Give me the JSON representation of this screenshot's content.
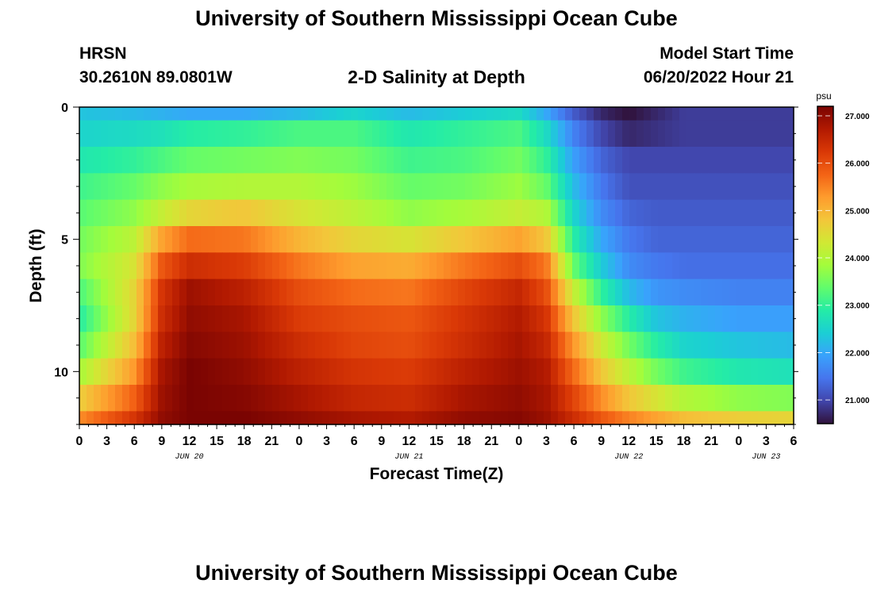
{
  "header": {
    "title": "University of Southern Mississippi Ocean Cube",
    "station": "HRSN",
    "coordinates": "30.2610N  89.0801W",
    "product": "2-D Salinity at Depth",
    "start_label": "Model Start Time",
    "start_value": "06/20/2022 Hour 21"
  },
  "footer": {
    "title": "University of Southern Mississippi Ocean Cube"
  },
  "chart_data": {
    "type": "heatmap",
    "title": "2-D Salinity at Depth",
    "xlabel": "Forecast Time(Z)",
    "ylabel": "Depth (ft)",
    "x_ticks": [
      "0",
      "3",
      "6",
      "9",
      "12",
      "15",
      "18",
      "21",
      "0",
      "3",
      "6",
      "9",
      "12",
      "15",
      "18",
      "21",
      "0",
      "3",
      "6",
      "9",
      "12",
      "15",
      "18",
      "21",
      "0",
      "3",
      "6"
    ],
    "date_labels": [
      {
        "label": "JUN 20",
        "x": 12
      },
      {
        "label": "JUN 21",
        "x": 36
      },
      {
        "label": "JUN 22",
        "x": 60
      },
      {
        "label": "JUN 23",
        "x": 75
      }
    ],
    "xlim": [
      0,
      78
    ],
    "y_ticks": [
      "0",
      "5",
      "10"
    ],
    "ylim": [
      0,
      12
    ],
    "colorbar": {
      "units": "psu",
      "min": 20.5,
      "max": 27.2,
      "ticks": [
        "21.000",
        "22.000",
        "23.000",
        "24.000",
        "25.000",
        "26.000",
        "27.000"
      ],
      "colors": [
        "#30123b",
        "#4145ab",
        "#4675ed",
        "#39a2fc",
        "#1bcfd4",
        "#24eca6",
        "#61fc6c",
        "#a4fc3b",
        "#d1e834",
        "#f3c63a",
        "#fe9b2d",
        "#f36315",
        "#d93806",
        "#b11901",
        "#7a0402"
      ]
    },
    "time_anchors": [
      0,
      6,
      9,
      12,
      18,
      24,
      30,
      36,
      42,
      48,
      51,
      54,
      57,
      60,
      63,
      66,
      72,
      78
    ],
    "depth_levels": [
      0,
      1,
      2,
      3,
      4,
      5,
      6,
      7,
      8,
      9,
      10,
      11,
      12
    ],
    "values": [
      [
        22.3,
        22.2,
        22.1,
        22.0,
        22.0,
        22.2,
        22.5,
        22.2,
        22.4,
        22.6,
        22.0,
        21.2,
        20.7,
        20.5,
        20.7,
        20.9,
        20.9,
        20.9
      ],
      [
        22.5,
        22.6,
        22.7,
        22.9,
        23.0,
        23.2,
        23.2,
        22.8,
        23.0,
        23.2,
        22.6,
        21.6,
        21.0,
        20.7,
        20.8,
        20.9,
        20.9,
        20.9
      ],
      [
        22.8,
        23.0,
        23.2,
        23.4,
        23.5,
        23.6,
        23.5,
        23.1,
        23.2,
        23.5,
        23.0,
        21.9,
        21.3,
        21.0,
        21.0,
        21.0,
        21.0,
        21.0
      ],
      [
        23.1,
        23.4,
        23.7,
        23.9,
        24.0,
        24.0,
        23.8,
        23.4,
        23.5,
        23.8,
        23.4,
        22.2,
        21.5,
        21.1,
        21.1,
        21.1,
        21.1,
        21.1
      ],
      [
        23.3,
        23.7,
        24.2,
        24.6,
        24.8,
        24.4,
        24.1,
        23.7,
        23.9,
        24.2,
        24.0,
        22.5,
        21.7,
        21.3,
        21.2,
        21.2,
        21.2,
        21.2
      ],
      [
        23.5,
        24.1,
        25.2,
        25.7,
        25.6,
        25.0,
        24.6,
        24.4,
        24.8,
        25.2,
        24.8,
        22.9,
        22.0,
        21.5,
        21.3,
        21.3,
        21.3,
        21.3
      ],
      [
        23.6,
        24.4,
        25.9,
        26.4,
        26.2,
        25.6,
        25.2,
        25.1,
        25.6,
        26.0,
        25.6,
        23.4,
        22.4,
        21.7,
        21.5,
        21.4,
        21.4,
        21.4
      ],
      [
        23.2,
        24.6,
        26.3,
        26.9,
        26.6,
        26.0,
        25.7,
        25.6,
        26.1,
        26.5,
        26.0,
        24.2,
        23.0,
        22.2,
        21.8,
        21.7,
        21.6,
        21.6
      ],
      [
        22.9,
        24.6,
        26.4,
        27.0,
        26.8,
        26.2,
        26.0,
        25.9,
        26.3,
        26.7,
        26.3,
        24.8,
        23.7,
        22.9,
        22.3,
        22.1,
        21.9,
        21.9
      ],
      [
        23.3,
        24.9,
        26.6,
        27.1,
        26.9,
        26.4,
        26.1,
        26.0,
        26.4,
        26.8,
        26.5,
        25.3,
        24.3,
        23.5,
        22.9,
        22.5,
        22.3,
        22.2
      ],
      [
        23.9,
        25.3,
        26.8,
        27.2,
        27.0,
        26.6,
        26.3,
        26.2,
        26.6,
        26.9,
        26.7,
        25.7,
        24.8,
        24.1,
        23.5,
        23.1,
        22.8,
        22.7
      ],
      [
        24.7,
        25.8,
        26.9,
        27.2,
        27.1,
        26.8,
        26.5,
        26.4,
        26.8,
        27.0,
        26.8,
        26.1,
        25.4,
        24.8,
        24.4,
        24.0,
        23.7,
        23.6
      ],
      [
        25.4,
        26.3,
        27.0,
        27.2,
        27.2,
        27.0,
        26.8,
        26.7,
        27.0,
        27.1,
        26.9,
        26.4,
        25.9,
        25.5,
        25.2,
        24.9,
        24.7,
        24.6
      ]
    ]
  }
}
